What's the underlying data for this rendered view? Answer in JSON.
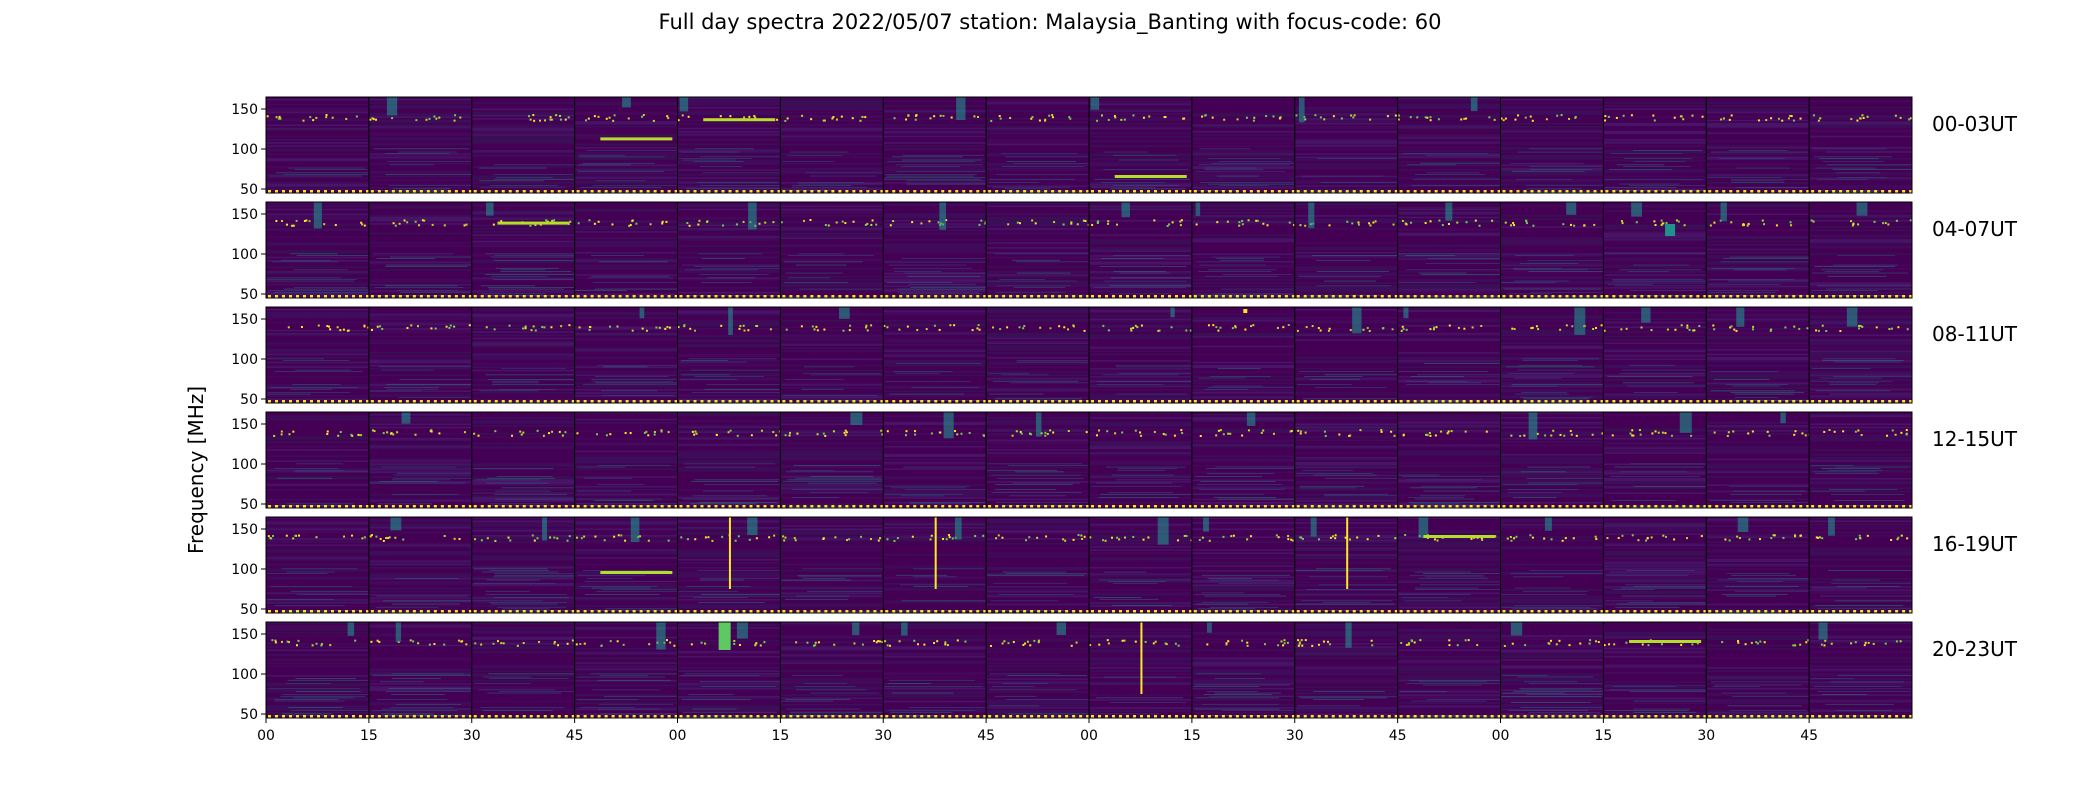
{
  "chart_data": {
    "type": "heatmap",
    "title": "Full day spectra 2022/05/07 station: Malaysia_Banting with focus-code: 60",
    "ylabel": "Frequency [MHz]",
    "xlabel": "",
    "colormap": "viridis",
    "colors": {
      "low": "#440154",
      "mid": "#21918c",
      "high": "#fde725"
    },
    "yticks": [
      50,
      100,
      150
    ],
    "ylim": [
      45,
      165
    ],
    "xtick_labels": [
      "00",
      "15",
      "30",
      "45",
      "00",
      "15",
      "30",
      "45",
      "00",
      "15",
      "30",
      "45",
      "00",
      "15",
      "30",
      "45"
    ],
    "minutes_per_panel": 15,
    "panels_per_row": 16,
    "rows": [
      {
        "label": "00-03UT",
        "bursts": [
          {
            "panel": 3,
            "freq": 112,
            "note": "band"
          },
          {
            "panel": 4,
            "freq": 136,
            "note": "band"
          },
          {
            "panel": 8,
            "freq": 65,
            "note": "band"
          }
        ]
      },
      {
        "label": "04-07UT",
        "bursts": [
          {
            "panel": 2,
            "freq": 138,
            "note": "band"
          },
          {
            "panel": 13,
            "freq": 130,
            "note": "patch"
          }
        ]
      },
      {
        "label": "08-11UT",
        "bursts": [
          {
            "panel": 9,
            "freq": 160,
            "note": "spot"
          }
        ]
      },
      {
        "label": "12-15UT",
        "bursts": []
      },
      {
        "label": "16-19UT",
        "bursts": [
          {
            "panel": 3,
            "freq": 95,
            "note": "band"
          },
          {
            "panel": 4,
            "freq": 110,
            "note": "vertical"
          },
          {
            "panel": 6,
            "freq": 140,
            "note": "vertical"
          },
          {
            "panel": 10,
            "freq": 120,
            "note": "vertical"
          },
          {
            "panel": 11,
            "freq": 140,
            "note": "band"
          }
        ]
      },
      {
        "label": "20-23UT",
        "bursts": [
          {
            "panel": 4,
            "freq": 150,
            "note": "block"
          },
          {
            "panel": 8,
            "freq": 120,
            "note": "vertical"
          },
          {
            "panel": 13,
            "freq": 140,
            "note": "band"
          }
        ]
      }
    ]
  }
}
